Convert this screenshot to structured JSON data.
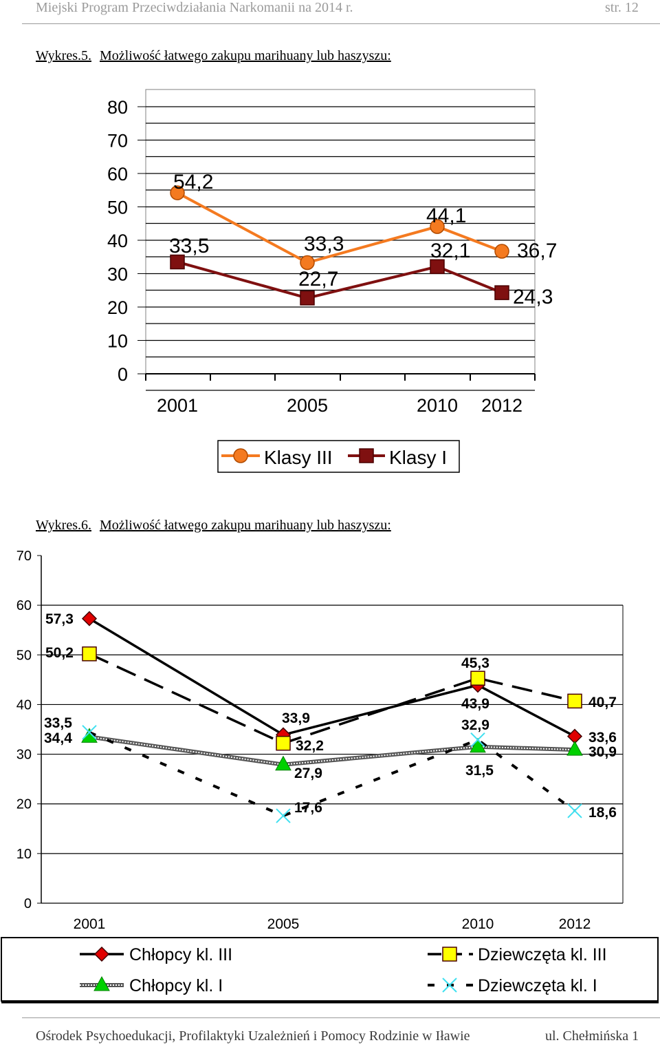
{
  "header": {
    "title": "Miejski Program Przeciwdziałania Narkomanii na 2014 r.",
    "page": "str. 12"
  },
  "footer": {
    "left": "Ośrodek Psychoedukacji, Profilaktyki Uzależnień i Pomocy Rodzinie w Iławie",
    "right": "ul. Chełmińska 1"
  },
  "captions": [
    {
      "label": "Wykres.5.",
      "title": "Możliwość łatwego zakupu marihuany lub haszyszu:"
    },
    {
      "label": "Wykres.6.",
      "title": "Możliwość łatwego zakupu marihuany lub haszyszu:"
    }
  ],
  "chart_data": [
    {
      "type": "line",
      "categories": [
        "2001",
        "2005",
        "2010",
        "2012"
      ],
      "ylim": [
        0,
        80
      ],
      "yticks": [
        0,
        10,
        20,
        30,
        40,
        50,
        60,
        70,
        80
      ],
      "grid": true,
      "legend_position": "bottom",
      "series": [
        {
          "name": "Klasy III",
          "values": [
            54.2,
            33.3,
            44.1,
            36.7
          ],
          "labels": [
            "54,2",
            "33,3",
            "44,1",
            "36,7"
          ],
          "color": "#f47a20",
          "marker": "circle"
        },
        {
          "name": "Klasy I",
          "values": [
            33.5,
            22.7,
            32.1,
            24.3
          ],
          "labels": [
            "33,5",
            "22,7",
            "32,1",
            "24,3"
          ],
          "color": "#7f1010",
          "marker": "square"
        }
      ]
    },
    {
      "type": "line",
      "categories": [
        "2001",
        "2005",
        "2010",
        "2012"
      ],
      "ylim": [
        0,
        70
      ],
      "yticks": [
        0,
        10,
        20,
        30,
        40,
        50,
        60,
        70
      ],
      "grid": true,
      "legend_position": "bottom",
      "series": [
        {
          "name": "Chłopcy kl. III",
          "values": [
            57.3,
            33.9,
            43.9,
            33.6
          ],
          "labels": [
            "57,3",
            "33,9",
            "43,9",
            "33,6"
          ],
          "color": "#000000",
          "marker": "diamond",
          "marker_color": "#e00000"
        },
        {
          "name": "Dziewczęta kl. III",
          "values": [
            50.2,
            32.2,
            45.3,
            40.7
          ],
          "labels": [
            "50,2",
            "32,2",
            "45,3",
            "40,7"
          ],
          "color": "#000000",
          "marker": "square",
          "marker_color": "#ffff00"
        },
        {
          "name": "Chłopcy kl. I",
          "values": [
            33.5,
            27.9,
            31.5,
            30.9
          ],
          "labels": [
            "33,5",
            "27,9",
            "31,5",
            "30,9"
          ],
          "color": "#666666",
          "marker": "triangle",
          "marker_color": "#00d000"
        },
        {
          "name": "Dziewczęta kl. I",
          "values": [
            34.4,
            17.6,
            32.9,
            18.6
          ],
          "labels": [
            "34,4",
            "17,6",
            "32,9",
            "18,6"
          ],
          "color": "#000000",
          "marker": "x",
          "marker_color": "#40e0f0"
        }
      ]
    }
  ]
}
